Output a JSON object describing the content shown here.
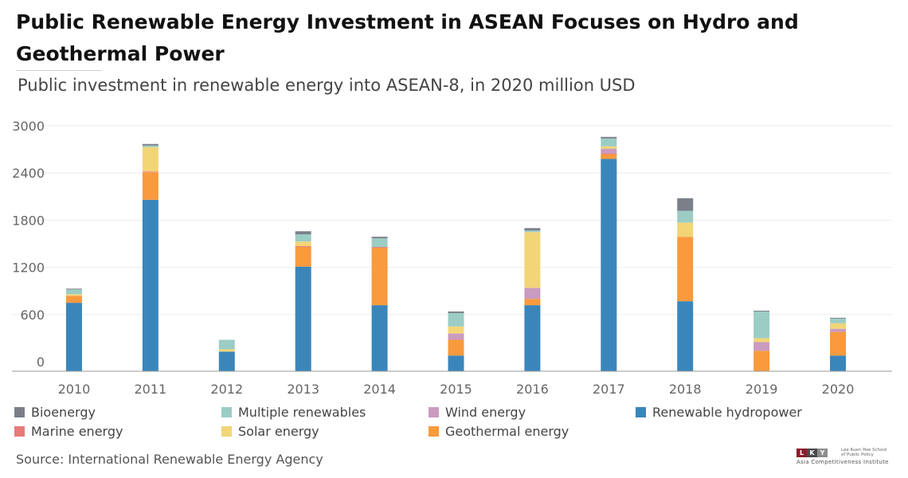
{
  "header": {
    "title": "Public Renewable Energy Investment in ASEAN Focuses on Hydro and Geothermal Power",
    "subtitle": "Public investment in renewable energy into ASEAN-8, in 2020 million USD"
  },
  "footer": {
    "source": "Source: International Renewable Energy Agency",
    "logo_mark": "LKY",
    "logo_school": "Lee Kuan Yew School of Public Policy",
    "logo_institute": "Asia Competitiveness Institute"
  },
  "chart_data": {
    "type": "bar",
    "stacked": true,
    "title": "Public Renewable Energy Investment in ASEAN Focuses on Hydro and Geothermal Power",
    "subtitle": "Public investment in renewable energy into ASEAN-8, in 2020 million USD",
    "categories": [
      "2010",
      "2011",
      "2012",
      "2013",
      "2014",
      "2015",
      "2016",
      "2017",
      "2018",
      "2019",
      "2020"
    ],
    "yticks": [
      0,
      600,
      1200,
      1800,
      2400,
      3000
    ],
    "ylim": [
      -120,
      3000
    ],
    "grid": true,
    "legend_position": "bottom",
    "series": [
      {
        "name": "Renewable hydropower",
        "color": "#3A86BB",
        "values": [
          750,
          2060,
          130,
          1210,
          720,
          80,
          720,
          2580,
          770,
          0,
          80
        ]
      },
      {
        "name": "Geothermal energy",
        "color": "#F99A3D",
        "values": [
          90,
          350,
          0,
          250,
          730,
          200,
          80,
          60,
          820,
          140,
          300
        ]
      },
      {
        "name": "Marine energy",
        "color": "#E87A7A",
        "values": [
          0,
          10,
          0,
          10,
          10,
          0,
          0,
          10,
          0,
          0,
          0
        ]
      },
      {
        "name": "Wind energy",
        "color": "#C99BC0",
        "values": [
          0,
          0,
          0,
          0,
          0,
          80,
          140,
          60,
          0,
          110,
          40
        ]
      },
      {
        "name": "Solar energy",
        "color": "#F2D577",
        "values": [
          20,
          310,
          30,
          60,
          0,
          90,
          710,
          30,
          180,
          50,
          70
        ]
      },
      {
        "name": "Multiple renewables",
        "color": "#9BCDC5",
        "values": [
          60,
          20,
          120,
          90,
          110,
          170,
          20,
          100,
          150,
          340,
          60
        ]
      },
      {
        "name": "Bioenergy",
        "color": "#7A7F88",
        "values": [
          10,
          20,
          0,
          40,
          20,
          20,
          30,
          20,
          160,
          10,
          10
        ]
      }
    ]
  },
  "legend": [
    {
      "name": "Bioenergy",
      "color": "#7A7F88"
    },
    {
      "name": "Multiple renewables",
      "color": "#9BCDC5"
    },
    {
      "name": "Wind energy",
      "color": "#C99BC0"
    },
    {
      "name": "Renewable hydropower",
      "color": "#3A86BB"
    },
    {
      "name": "Marine energy",
      "color": "#E87A7A"
    },
    {
      "name": "Solar energy",
      "color": "#F2D577"
    },
    {
      "name": "Geothermal energy",
      "color": "#F99A3D"
    }
  ]
}
